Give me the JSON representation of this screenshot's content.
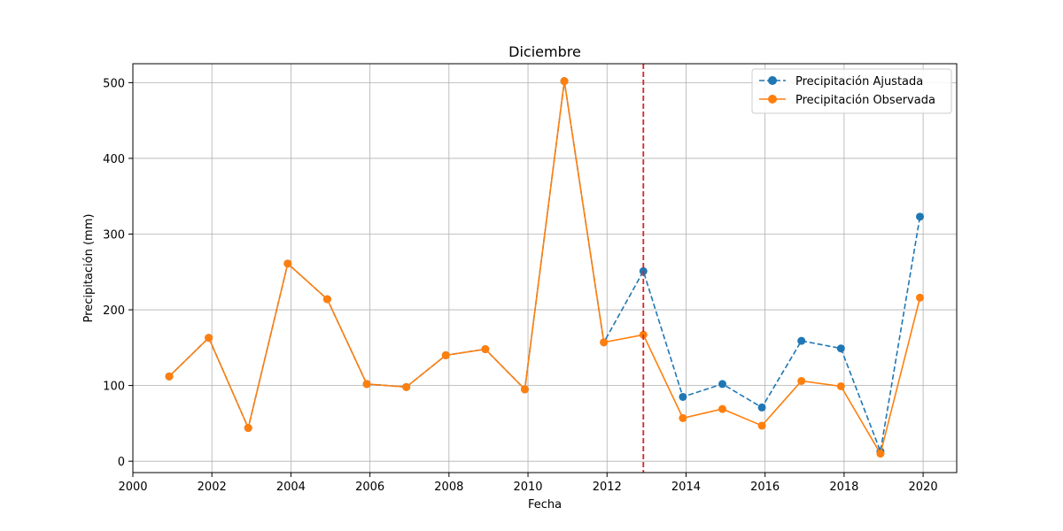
{
  "chart_data": {
    "type": "line",
    "title": "Diciembre",
    "xlabel": "Fecha",
    "ylabel": "Precipitación (mm)",
    "xlim": [
      2000,
      2020.85
    ],
    "ylim": [
      -15,
      525
    ],
    "xticks": [
      2000,
      2002,
      2004,
      2006,
      2008,
      2010,
      2012,
      2014,
      2016,
      2018,
      2020
    ],
    "yticks": [
      0,
      100,
      200,
      300,
      400,
      500
    ],
    "grid": true,
    "legend_position": "top-right",
    "x": [
      2000.92,
      2001.92,
      2002.92,
      2003.92,
      2004.92,
      2005.92,
      2006.92,
      2007.92,
      2008.92,
      2009.92,
      2010.92,
      2011.92,
      2012.92,
      2013.92,
      2014.92,
      2015.92,
      2016.92,
      2017.92,
      2018.92,
      2019.92
    ],
    "series": [
      {
        "name": "Precipitación Ajustada",
        "color": "#1f77b4",
        "style": "dashed",
        "values": [
          112,
          163,
          44,
          261,
          214,
          102,
          98,
          140,
          148,
          95,
          502,
          157,
          251,
          85,
          102,
          71,
          159,
          149,
          13,
          323
        ]
      },
      {
        "name": "Precipitación Observada",
        "color": "#ff7f0e",
        "style": "solid",
        "values": [
          112,
          163,
          44,
          261,
          214,
          102,
          98,
          140,
          148,
          95,
          502,
          157,
          167,
          57,
          69,
          47,
          106,
          99,
          10,
          216
        ]
      }
    ],
    "vline": {
      "x": 2012.92,
      "color": "#d62728",
      "style": "dashed"
    }
  }
}
